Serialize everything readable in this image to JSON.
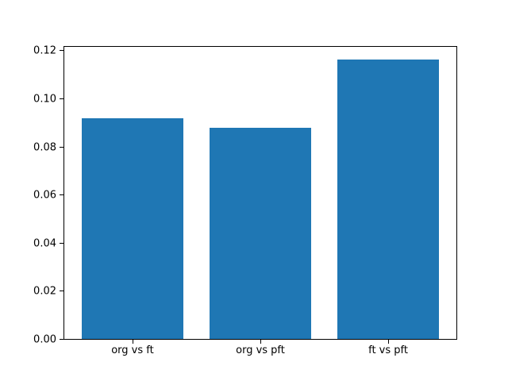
{
  "figure": {
    "title": "",
    "background_color": "#ffffff"
  },
  "chart_data": {
    "type": "bar",
    "title": "",
    "xlabel": "",
    "ylabel": "",
    "categories": [
      "org vs ft",
      "org vs pft",
      "ft vs pft"
    ],
    "values": [
      0.0917,
      0.0877,
      0.1161
    ],
    "ylim": [
      0,
      0.1218
    ],
    "xlim": [
      -0.54,
      2.54
    ],
    "yticks": [
      0,
      0.02,
      0.04,
      0.06,
      0.08,
      0.1,
      0.12
    ],
    "ytick_labels": [
      "0.00",
      "0.02",
      "0.04",
      "0.06",
      "0.08",
      "0.10",
      "0.12"
    ],
    "bar_width": 0.8,
    "bar_color": "#1f77b4",
    "spine_color": "#000000",
    "tick_label_color": "#000000",
    "grid": false,
    "legend": "none"
  }
}
